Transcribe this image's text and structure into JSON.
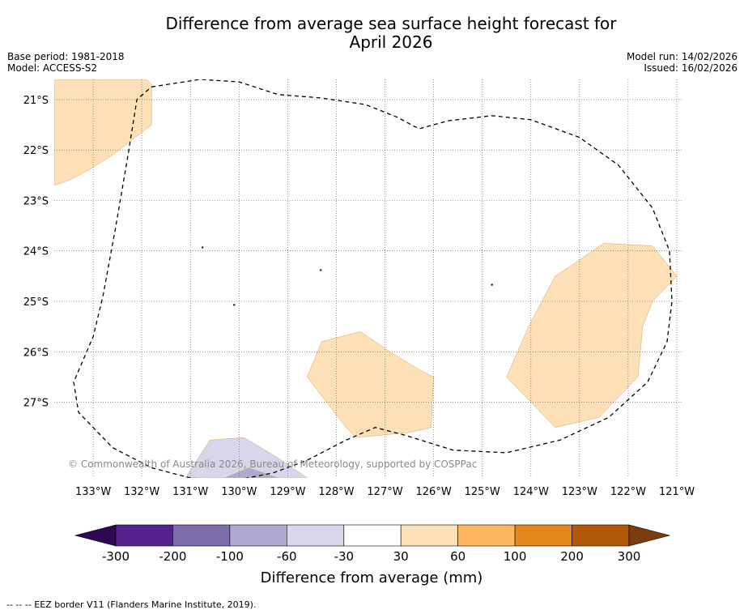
{
  "title": {
    "line1": "Difference from average sea surface height forecast for",
    "line2": "April 2026"
  },
  "meta": {
    "base_period": "Base period: 1981-2018",
    "model": "Model: ACCESS-S2",
    "model_run": "Model run: 14/02/2026",
    "issued": "Issued: 16/02/2026"
  },
  "map": {
    "lon_range": [
      -133.8,
      -120.9
    ],
    "lat_range": [
      -28.5,
      -20.6
    ],
    "lon_ticks": [
      {
        "value": -133,
        "label": "133°W"
      },
      {
        "value": -132,
        "label": "132°W"
      },
      {
        "value": -131,
        "label": "131°W"
      },
      {
        "value": -130,
        "label": "130°W"
      },
      {
        "value": -129,
        "label": "129°W"
      },
      {
        "value": -128,
        "label": "128°W"
      },
      {
        "value": -127,
        "label": "127°W"
      },
      {
        "value": -126,
        "label": "126°W"
      },
      {
        "value": -125,
        "label": "125°W"
      },
      {
        "value": -124,
        "label": "124°W"
      },
      {
        "value": -123,
        "label": "123°W"
      },
      {
        "value": -122,
        "label": "122°W"
      },
      {
        "value": -121,
        "label": "121°W"
      }
    ],
    "lat_ticks": [
      {
        "value": -21,
        "label": "21°S"
      },
      {
        "value": -22,
        "label": "22°S"
      },
      {
        "value": -23,
        "label": "23°S"
      },
      {
        "value": -24,
        "label": "24°S"
      },
      {
        "value": -25,
        "label": "25°S"
      },
      {
        "value": -26,
        "label": "26°S"
      },
      {
        "value": -27,
        "label": "27°S"
      }
    ],
    "regions": [
      {
        "name": "anomaly-region-northwest",
        "bin": "30 to 60",
        "color": "#fde0b8",
        "outline": [
          [
            -133.8,
            -21.0
          ],
          [
            -133.8,
            -20.6
          ],
          [
            -131.9,
            -20.6
          ],
          [
            -131.8,
            -20.7
          ],
          [
            -131.8,
            -21.5
          ],
          [
            -132.2,
            -21.8
          ],
          [
            -132.6,
            -22.1
          ],
          [
            -133.1,
            -22.4
          ],
          [
            -133.5,
            -22.6
          ],
          [
            -133.8,
            -22.7
          ]
        ]
      },
      {
        "name": "anomaly-region-central",
        "bin": "30 to 60",
        "color": "#fde0b8",
        "outline": [
          [
            -128.3,
            -25.8
          ],
          [
            -127.5,
            -25.6
          ],
          [
            -126.9,
            -26.0
          ],
          [
            -126.3,
            -26.35
          ],
          [
            -126.0,
            -26.5
          ],
          [
            -126.05,
            -27.5
          ],
          [
            -126.5,
            -27.6
          ],
          [
            -127.6,
            -27.7
          ],
          [
            -127.8,
            -27.5
          ],
          [
            -128.6,
            -26.5
          ]
        ]
      },
      {
        "name": "anomaly-region-east",
        "bin": "30 to 60",
        "color": "#fde0b8",
        "outline": [
          [
            -122.5,
            -23.85
          ],
          [
            -121.5,
            -23.9
          ],
          [
            -121.0,
            -24.5
          ],
          [
            -121.5,
            -25.0
          ],
          [
            -121.7,
            -25.5
          ],
          [
            -121.8,
            -26.5
          ],
          [
            -122.6,
            -27.3
          ],
          [
            -123.5,
            -27.5
          ],
          [
            -124.5,
            -26.5
          ],
          [
            -124.05,
            -25.5
          ],
          [
            -123.5,
            -24.5
          ]
        ]
      },
      {
        "name": "anomaly-region-south-light",
        "bin": "-60 to -30",
        "color": "#d7d6ea",
        "outline": [
          [
            -131.1,
            -28.5
          ],
          [
            -130.6,
            -27.75
          ],
          [
            -129.9,
            -27.7
          ],
          [
            -129.2,
            -28.1
          ],
          [
            -128.6,
            -28.5
          ]
        ]
      },
      {
        "name": "anomaly-region-south-medium",
        "bin": "-100 to -60",
        "color": "#afa9d2",
        "outline": [
          [
            -130.3,
            -28.5
          ],
          [
            -129.8,
            -28.3
          ],
          [
            -129.2,
            -28.5
          ]
        ]
      }
    ],
    "eez_border": [
      [
        -131.8,
        -20.75
      ],
      [
        -130.8,
        -20.6
      ],
      [
        -130.0,
        -20.65
      ],
      [
        -129.2,
        -20.9
      ],
      [
        -128.3,
        -20.97
      ],
      [
        -127.4,
        -21.1
      ],
      [
        -126.75,
        -21.35
      ],
      [
        -126.3,
        -21.58
      ],
      [
        -125.7,
        -21.42
      ],
      [
        -124.8,
        -21.32
      ],
      [
        -124.0,
        -21.4
      ],
      [
        -123.0,
        -21.75
      ],
      [
        -122.2,
        -22.3
      ],
      [
        -121.5,
        -23.15
      ],
      [
        -121.15,
        -24.0
      ],
      [
        -121.1,
        -25.0
      ],
      [
        -121.2,
        -25.8
      ],
      [
        -121.6,
        -26.6
      ],
      [
        -122.4,
        -27.3
      ],
      [
        -123.4,
        -27.75
      ],
      [
        -124.5,
        -28.0
      ],
      [
        -125.6,
        -27.95
      ],
      [
        -126.6,
        -27.65
      ],
      [
        -127.2,
        -27.5
      ],
      [
        -127.8,
        -27.75
      ],
      [
        -128.6,
        -28.15
      ],
      [
        -129.3,
        -28.4
      ],
      [
        -130.2,
        -28.57
      ],
      [
        -131.0,
        -28.5
      ],
      [
        -131.8,
        -28.3
      ],
      [
        -132.6,
        -27.9
      ],
      [
        -133.3,
        -27.2
      ],
      [
        -133.4,
        -26.6
      ],
      [
        -133.0,
        -25.7
      ],
      [
        -132.8,
        -24.9
      ],
      [
        -132.55,
        -23.6
      ],
      [
        -132.3,
        -22.2
      ],
      [
        -132.1,
        -21.0
      ],
      [
        -131.8,
        -20.75
      ]
    ],
    "islands": [
      {
        "name": "island-small-west",
        "lon": -130.75,
        "lat": -23.93
      },
      {
        "name": "island-pitcairn-area",
        "lon": -128.32,
        "lat": -24.38
      },
      {
        "name": "island-small-south",
        "lon": -130.1,
        "lat": -25.07
      },
      {
        "name": "island-small-east",
        "lon": -124.8,
        "lat": -24.67
      }
    ],
    "copyright": "© Commonwealth of Australia 2026, Bureau of Meteorology, supported by COSPPac"
  },
  "colorbar": {
    "title": "Difference from average (mm)",
    "labels": [
      "-300",
      "-200",
      "-100",
      "-60",
      "-30",
      "30",
      "60",
      "100",
      "200",
      "300"
    ],
    "bins": [
      {
        "range": "-300 to -200",
        "color": "#54228a"
      },
      {
        "range": "-200 to -100",
        "color": "#7d6daa"
      },
      {
        "range": "-100 to -60",
        "color": "#afa9d2"
      },
      {
        "range": "-60 to -30",
        "color": "#d7d6ea"
      },
      {
        "range": "-30 to 30",
        "color": "#ffffff"
      },
      {
        "range": "30 to 60",
        "color": "#fde0b8"
      },
      {
        "range": "60 to 100",
        "color": "#fdb760"
      },
      {
        "range": "100 to 200",
        "color": "#e3861b"
      },
      {
        "range": "200 to 300",
        "color": "#b1590a"
      }
    ],
    "under_color": "#2e0852",
    "over_color": "#7a3d0b"
  },
  "footnote": "--  --  -- EEZ border V11 (Flanders Marine Institute, 2019)."
}
